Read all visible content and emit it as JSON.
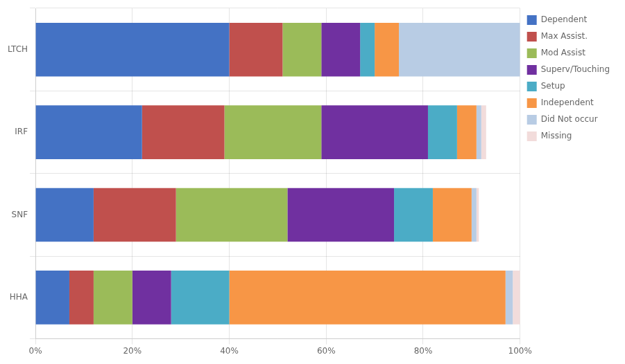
{
  "chart_data": {
    "type": "bar",
    "orientation": "horizontal",
    "stacked": true,
    "categories": [
      "HHA",
      "SNF",
      "IRF",
      "LTCH"
    ],
    "series": [
      {
        "name": "Dependent",
        "color": "#4472C4",
        "values": [
          7.0,
          12.0,
          22.0,
          40.0
        ]
      },
      {
        "name": "Max Assist.",
        "color": "#C0504D",
        "values": [
          5.0,
          17.0,
          17.0,
          11.0
        ]
      },
      {
        "name": "Mod Assist",
        "color": "#9BBB59",
        "values": [
          8.0,
          23.0,
          20.0,
          8.0
        ]
      },
      {
        "name": "Superv/Touching",
        "color": "#7030A0",
        "values": [
          8.0,
          22.0,
          22.0,
          8.0
        ]
      },
      {
        "name": "Setup",
        "color": "#4BACC6",
        "values": [
          12.0,
          8.0,
          6.0,
          3.0
        ]
      },
      {
        "name": "Independent",
        "color": "#F79646",
        "values": [
          57.0,
          8.0,
          4.0,
          5.0
        ]
      },
      {
        "name": "Did Not occur",
        "color": "#B8CCE4",
        "values": [
          1.5,
          1.0,
          1.0,
          25.0
        ]
      },
      {
        "name": "Missing",
        "color": "#F2DCDB",
        "values": [
          1.5,
          0.5,
          1.0,
          0.0
        ]
      }
    ],
    "xlim": [
      0,
      100
    ],
    "xticks": [
      {
        "value": 0,
        "label": "0%"
      },
      {
        "value": 20,
        "label": "20%"
      },
      {
        "value": 40,
        "label": "40%"
      },
      {
        "value": 60,
        "label": "60%"
      },
      {
        "value": 80,
        "label": "80%"
      },
      {
        "value": 100,
        "label": "100%"
      }
    ],
    "grid": true,
    "legend": "right"
  }
}
